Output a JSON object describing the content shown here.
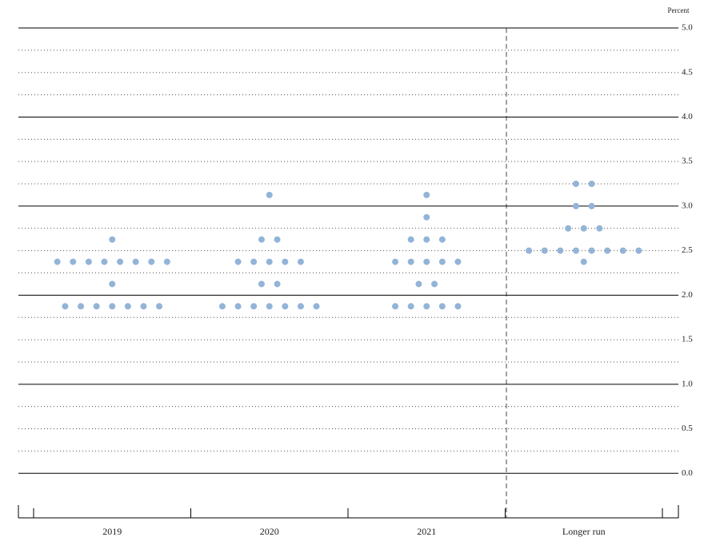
{
  "chart_data": {
    "type": "dot",
    "y_axis_label": "Percent",
    "categories": [
      "2019",
      "2020",
      "2021",
      "Longer run"
    ],
    "dots": [
      [
        2.625,
        2.375,
        2.375,
        2.375,
        2.375,
        2.375,
        2.375,
        2.375,
        2.375,
        2.125,
        1.875,
        1.875,
        1.875,
        1.875,
        1.875,
        1.875,
        1.875
      ],
      [
        3.125,
        2.625,
        2.625,
        2.375,
        2.375,
        2.375,
        2.375,
        2.375,
        2.125,
        2.125,
        1.875,
        1.875,
        1.875,
        1.875,
        1.875,
        1.875,
        1.875
      ],
      [
        3.125,
        2.875,
        2.625,
        2.625,
        2.625,
        2.375,
        2.375,
        2.375,
        2.375,
        2.375,
        2.125,
        2.125,
        1.875,
        1.875,
        1.875,
        1.875,
        1.875
      ],
      [
        3.25,
        3.25,
        3.0,
        3.0,
        2.75,
        2.75,
        2.75,
        2.5,
        2.5,
        2.5,
        2.5,
        2.5,
        2.5,
        2.5,
        2.5,
        2.375
      ]
    ],
    "color": "#93b4d8",
    "ylim": [
      -0.5,
      5.0
    ],
    "yticks": [
      {
        "value": 0,
        "label": "0.0"
      },
      {
        "value": 0.5,
        "label": "0.5"
      },
      {
        "value": 1,
        "label": "1.0"
      },
      {
        "value": 1.5,
        "label": "1.5"
      },
      {
        "value": 2,
        "label": "2.0"
      },
      {
        "value": 2.5,
        "label": "2.5"
      },
      {
        "value": 3,
        "label": "3.0"
      },
      {
        "value": 3.5,
        "label": "3.5"
      },
      {
        "value": 4,
        "label": "4.0"
      },
      {
        "value": 4.5,
        "label": "4.5"
      },
      {
        "value": 5,
        "label": "5.0"
      }
    ],
    "minor_yticks": [
      0.25,
      0.75,
      1.25,
      1.75,
      2.25,
      2.75,
      3.25,
      3.75,
      4.25,
      4.75
    ],
    "grid": true
  }
}
